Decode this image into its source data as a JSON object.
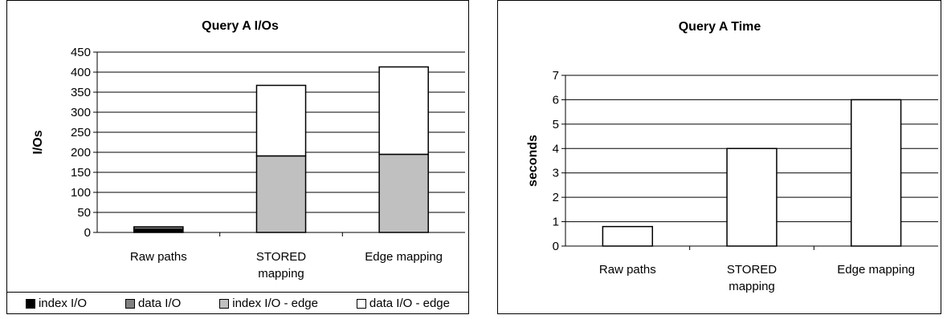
{
  "chart_data": [
    {
      "type": "bar",
      "stacked": true,
      "title": "Query A I/Os",
      "ylabel": "I/Os",
      "xlabel": "",
      "ylim": [
        0,
        450
      ],
      "yticks": [
        0,
        50,
        100,
        150,
        200,
        250,
        300,
        350,
        400,
        450
      ],
      "categories": [
        [
          "Raw paths"
        ],
        [
          "STORED",
          "mapping"
        ],
        [
          "Edge mapping"
        ]
      ],
      "series": [
        {
          "name": "index I/O",
          "color": "#000000",
          "values": [
            8,
            0,
            0
          ]
        },
        {
          "name": "data I/O",
          "color": "#808080",
          "values": [
            6,
            0,
            0
          ]
        },
        {
          "name": "index I/O - edge",
          "color": "#c0c0c0",
          "values": [
            0,
            191,
            195
          ]
        },
        {
          "name": "data I/O - edge",
          "color": "#ffffff",
          "values": [
            0,
            176,
            218
          ]
        }
      ],
      "grid": true,
      "legend": "bottom"
    },
    {
      "type": "bar",
      "title": "Query A Time",
      "ylabel": "seconds",
      "xlabel": "",
      "ylim": [
        0,
        7
      ],
      "yticks": [
        0,
        1,
        2,
        3,
        4,
        5,
        6,
        7
      ],
      "categories": [
        [
          "Raw paths"
        ],
        [
          "STORED",
          "mapping"
        ],
        [
          "Edge mapping"
        ]
      ],
      "series": [
        {
          "color": "#ffffff",
          "values": [
            0.8,
            4,
            6
          ]
        }
      ],
      "grid": true
    }
  ]
}
